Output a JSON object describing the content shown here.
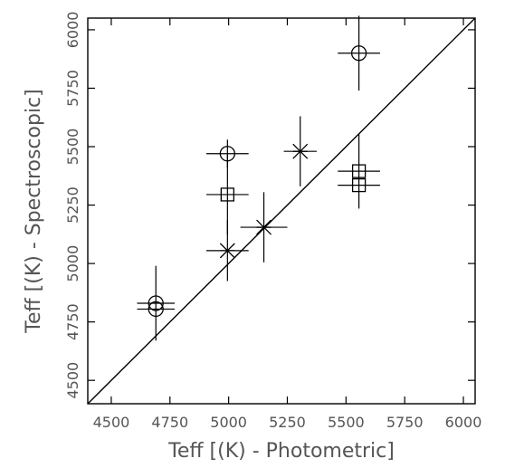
{
  "chart_data": {
    "type": "scatter",
    "title": "",
    "xlabel": "Teff [(K) - Photometric]",
    "ylabel": "Teff [(K) - Spectroscopic]",
    "xlim": [
      4400,
      6050
    ],
    "ylim": [
      4400,
      6050
    ],
    "x_ticks": [
      4500,
      4750,
      5000,
      5250,
      5500,
      5750,
      6000
    ],
    "y_ticks": [
      4500,
      4750,
      5000,
      5250,
      5500,
      5750,
      6000
    ],
    "x_tick_labels": [
      "4500",
      "4750",
      "5000",
      "5250",
      "5500",
      "5750",
      "6000"
    ],
    "y_tick_labels": [
      "4500",
      "4750",
      "5000",
      "5250",
      "5500",
      "5750",
      "6000"
    ],
    "grid": false,
    "legend": "none",
    "reference_line": {
      "type": "one-to-one",
      "from": [
        4400,
        4400
      ],
      "to": [
        6050,
        6050
      ]
    },
    "series": [
      {
        "marker": "circle",
        "points": [
          {
            "x": 4690,
            "y": 4830,
            "xerr": 80,
            "yerr": 160
          },
          {
            "x": 4690,
            "y": 4805,
            "xerr": 80,
            "yerr": 0
          },
          {
            "x": 4995,
            "y": 5470,
            "xerr": 90,
            "yerr": 60
          },
          {
            "x": 5555,
            "y": 5900,
            "xerr": 90,
            "yerr": 160
          }
        ]
      },
      {
        "marker": "square",
        "points": [
          {
            "x": 4995,
            "y": 5295,
            "xerr": 90,
            "yerr": 170
          },
          {
            "x": 5555,
            "y": 5395,
            "xerr": 90,
            "yerr": 160
          },
          {
            "x": 5555,
            "y": 5335,
            "xerr": 90,
            "yerr": 0
          }
        ]
      },
      {
        "marker": "asterisk",
        "points": [
          {
            "x": 4995,
            "y": 5055,
            "xerr": 90,
            "yerr": 130
          },
          {
            "x": 5150,
            "y": 5155,
            "xerr": 100,
            "yerr": 150
          },
          {
            "x": 5305,
            "y": 5480,
            "xerr": 70,
            "yerr": 150
          }
        ]
      }
    ]
  }
}
